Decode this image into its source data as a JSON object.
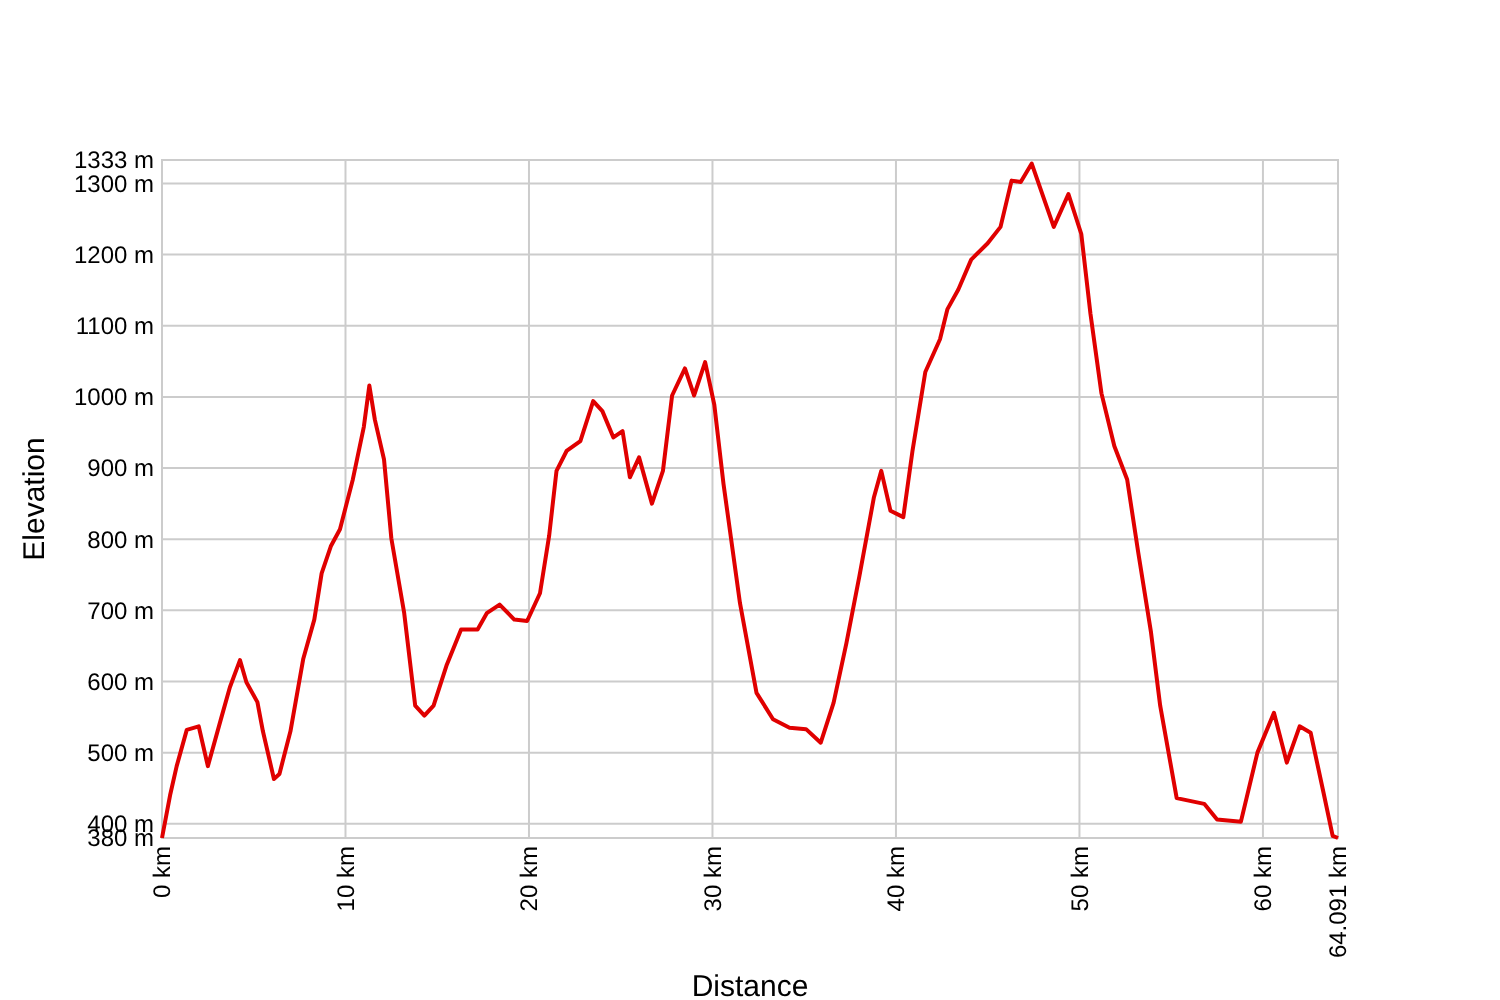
{
  "chart_data": {
    "type": "line",
    "xlabel": "Distance",
    "ylabel": "Elevation",
    "xlim": [
      0,
      64.091
    ],
    "ylim": [
      380,
      1333
    ],
    "xticks": [
      {
        "value": 0,
        "label": "0 km"
      },
      {
        "value": 10,
        "label": "10 km"
      },
      {
        "value": 20,
        "label": "20 km"
      },
      {
        "value": 30,
        "label": "30 km"
      },
      {
        "value": 40,
        "label": "40 km"
      },
      {
        "value": 50,
        "label": "50 km"
      },
      {
        "value": 60,
        "label": "60 km"
      },
      {
        "value": 64.091,
        "label": "64.091 km"
      }
    ],
    "yticks": [
      {
        "value": 380,
        "label": "380 m"
      },
      {
        "value": 400,
        "label": "400 m"
      },
      {
        "value": 500,
        "label": "500 m"
      },
      {
        "value": 600,
        "label": "600 m"
      },
      {
        "value": 700,
        "label": "700 m"
      },
      {
        "value": 800,
        "label": "800 m"
      },
      {
        "value": 900,
        "label": "900 m"
      },
      {
        "value": 1000,
        "label": "1000 m"
      },
      {
        "value": 1100,
        "label": "1100 m"
      },
      {
        "value": 1200,
        "label": "1200 m"
      },
      {
        "value": 1300,
        "label": "1300 m"
      },
      {
        "value": 1333,
        "label": "1333 m"
      }
    ],
    "grid": true,
    "marker": "none",
    "line_style": "solid",
    "series": [
      {
        "color": "#e00000",
        "x": [
          0,
          0.44,
          0.8,
          1.35,
          2.0,
          2.5,
          3.2,
          3.7,
          4.25,
          4.6,
          5.2,
          5.5,
          6.1,
          6.4,
          7.0,
          7.7,
          8.3,
          8.7,
          9.2,
          9.7,
          10.4,
          11.0,
          11.3,
          11.6,
          12.1,
          12.5,
          13.2,
          13.8,
          14.3,
          14.8,
          15.5,
          16.3,
          17.2,
          17.7,
          18.4,
          19.2,
          19.9,
          20.6,
          21.1,
          21.5,
          22.05,
          22.8,
          23.5,
          24.0,
          24.6,
          25.1,
          25.5,
          26.0,
          26.7,
          27.3,
          27.8,
          28.5,
          29.0,
          29.6,
          30.1,
          30.6,
          31.5,
          32.4,
          33.3,
          34.2,
          35.1,
          35.9,
          36.6,
          37.3,
          38.0,
          38.8,
          39.2,
          39.7,
          40.4,
          40.9,
          41.6,
          42.4,
          42.8,
          43.4,
          44.1,
          45.0,
          45.7,
          46.3,
          46.8,
          47.4,
          48.1,
          48.6,
          49.4,
          50.1,
          50.6,
          51.2,
          51.9,
          52.6,
          53.2,
          53.9,
          54.4,
          55.3,
          56.8,
          57.5,
          58.8,
          59.7,
          60.6,
          61.3,
          62.0,
          62.6,
          63.3,
          63.8,
          64.091
        ],
        "values": [
          380,
          440,
          481,
          532,
          537,
          481,
          546,
          592,
          630,
          599,
          571,
          530,
          463,
          470,
          530,
          632,
          687,
          752,
          790,
          814,
          884,
          958,
          1016,
          968,
          912,
          801,
          696,
          566,
          552,
          566,
          622,
          673,
          673,
          696,
          708,
          687,
          685,
          724,
          805,
          896,
          924,
          938,
          994,
          980,
          943,
          952,
          887,
          915,
          850,
          896,
          1002,
          1040,
          1002,
          1049,
          989,
          878,
          710,
          584,
          547,
          535,
          533,
          514,
          570,
          654,
          747,
          859,
          896,
          840,
          831,
          924,
          1035,
          1081,
          1123,
          1151,
          1193,
          1216,
          1239,
          1304,
          1302,
          1328,
          1276,
          1239,
          1285,
          1229,
          1117,
          1005,
          931,
          884,
          782,
          669,
          566,
          436,
          428,
          406,
          403,
          500,
          556,
          486,
          537,
          528,
          444,
          383,
          380
        ]
      }
    ]
  }
}
